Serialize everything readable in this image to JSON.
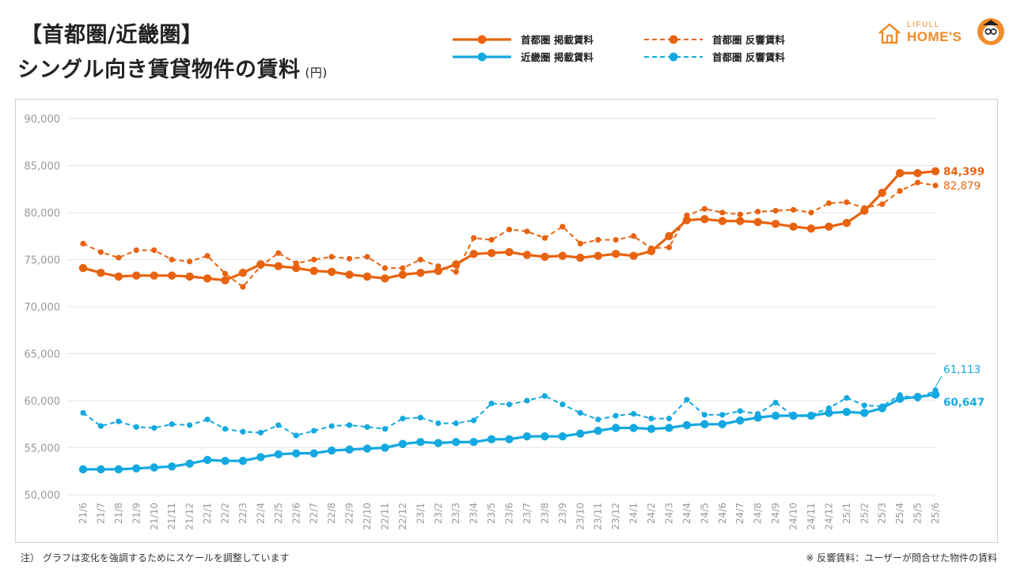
{
  "header": {
    "title_line1": "【首都圏/近畿圏】",
    "title_line2": "シングル向き賃貸物件の賃料",
    "unit": "(円)"
  },
  "logo": {
    "small_text": "LIFULL",
    "main_text": "HOME'S",
    "icon": "homes-mascot-icon"
  },
  "footnotes": {
    "left": "注） グラフは変化を強調するためにスケールを調整しています",
    "right": "※ 反響賃料：ユーザーが問合せた物件の賃料"
  },
  "colors": {
    "shutoken": "#e8630f",
    "kinki": "#13a9e0",
    "grid": "#e6e6e6",
    "axis_text": "#999999"
  },
  "chart_data": {
    "type": "line",
    "ylim": [
      50000,
      90000
    ],
    "yticks": [
      50000,
      55000,
      60000,
      65000,
      70000,
      75000,
      80000,
      85000,
      90000
    ],
    "ytick_labels": [
      "50,000",
      "55,000",
      "60,000",
      "65,000",
      "70,000",
      "75,000",
      "80,000",
      "85,000",
      "90,000"
    ],
    "grid": true,
    "legend_position": "top",
    "categories": [
      "21/6",
      "21/7",
      "21/8",
      "21/9",
      "21/10",
      "21/11",
      "21/12",
      "22/1",
      "22/2",
      "22/3",
      "22/4",
      "22/5",
      "22/6",
      "22/7",
      "22/8",
      "22/9",
      "22/10",
      "22/11",
      "22/12",
      "23/1",
      "23/2",
      "23/3",
      "23/4",
      "23/5",
      "23/6",
      "23/7",
      "23/8",
      "23/9",
      "23/10",
      "23/11",
      "23/12",
      "24/1",
      "24/2",
      "24/3",
      "24/4",
      "24/5",
      "24/6",
      "24/7",
      "24/8",
      "24/9",
      "24/10",
      "24/11",
      "24/12",
      "25/1",
      "25/2",
      "25/3",
      "25/4",
      "25/5",
      "25/6"
    ],
    "series": [
      {
        "name": "首都圏 掲載賃料",
        "color": "#e8630f",
        "dashed": false,
        "markers_every": 1,
        "label_end": "84,399",
        "values": [
          74100,
          73600,
          73200,
          73300,
          73300,
          73300,
          73200,
          73000,
          72800,
          73600,
          74500,
          74300,
          74100,
          73800,
          73700,
          73400,
          73200,
          73000,
          73400,
          73600,
          73800,
          74500,
          75600,
          75700,
          75800,
          75500,
          75300,
          75400,
          75200,
          75400,
          75600,
          75400,
          75900,
          77500,
          79200,
          79300,
          79100,
          79100,
          79000,
          78800,
          78500,
          78300,
          78500,
          78900,
          80200,
          82100,
          84200,
          84200,
          84399
        ]
      },
      {
        "name": "近畿圏 掲載賃料",
        "color": "#13a9e0",
        "dashed": false,
        "markers_every": 1,
        "label_end": "60,647",
        "values": [
          52700,
          52700,
          52700,
          52800,
          52900,
          53000,
          53300,
          53700,
          53600,
          53600,
          54000,
          54300,
          54400,
          54400,
          54700,
          54800,
          54900,
          55000,
          55400,
          55600,
          55500,
          55600,
          55600,
          55900,
          55900,
          56200,
          56200,
          56200,
          56500,
          56800,
          57100,
          57100,
          57000,
          57100,
          57400,
          57500,
          57500,
          57900,
          58200,
          58400,
          58400,
          58400,
          58700,
          58800,
          58700,
          59200,
          60200,
          60400,
          60647
        ]
      },
      {
        "name": "首都圏 反響賃料",
        "color": "#e8630f",
        "dashed": true,
        "markers_every": 1,
        "label_end": "82,879",
        "values": [
          76700,
          75800,
          75200,
          76000,
          76000,
          75000,
          74800,
          75400,
          73500,
          72100,
          74300,
          75700,
          74600,
          75000,
          75300,
          75100,
          75300,
          74100,
          74100,
          75000,
          74300,
          73700,
          77300,
          77100,
          78200,
          78000,
          77300,
          78500,
          76700,
          77100,
          77100,
          77500,
          76200,
          76300,
          79700,
          80400,
          80000,
          79800,
          80100,
          80200,
          80300,
          80000,
          81000,
          81100,
          80500,
          80900,
          82300,
          83200,
          82879
        ]
      },
      {
        "name": "首都圏 反響賃料",
        "color": "#13a9e0",
        "dashed": true,
        "markers_every": 1,
        "label_end": "61,113",
        "values": [
          58700,
          57300,
          57800,
          57200,
          57100,
          57500,
          57400,
          58000,
          57000,
          56700,
          56600,
          57400,
          56300,
          56800,
          57300,
          57400,
          57200,
          57000,
          58100,
          58200,
          57600,
          57600,
          57900,
          59700,
          59600,
          60000,
          60500,
          59600,
          58700,
          58000,
          58400,
          58600,
          58100,
          58100,
          60100,
          58500,
          58500,
          58900,
          58600,
          59800,
          58400,
          58500,
          59200,
          60300,
          59500,
          59400,
          60600,
          60200,
          61113
        ]
      }
    ]
  }
}
